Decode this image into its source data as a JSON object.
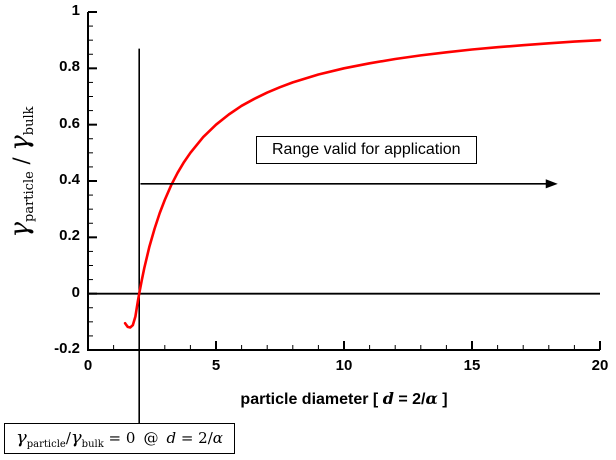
{
  "chart_data": {
    "type": "line",
    "xlabel": "particle diameter [ d = 2/α ]",
    "ylabel": "γparticle / γbulk",
    "xlim": [
      0,
      20
    ],
    "ylim": [
      -0.2,
      1
    ],
    "x_ticks": [
      0,
      5,
      10,
      15,
      20
    ],
    "x_tick_labels": [
      "0",
      "5",
      "10",
      "15",
      "20"
    ],
    "y_ticks": [
      -0.2,
      0,
      0.2,
      0.4,
      0.6,
      0.8,
      1
    ],
    "y_tick_labels": [
      "-0.2",
      "0",
      "0.2",
      "0.4",
      "0.6",
      "0.8",
      "1"
    ],
    "x_minor_step": 1,
    "y_minor_step": 0.05,
    "grid": false,
    "legend": "none",
    "series": [
      {
        "name": "gamma_ratio_vs_particle_diameter",
        "color": "#ff0000",
        "x": [
          1.45,
          1.55,
          1.65,
          1.75,
          1.85,
          1.95,
          2.0,
          2.1,
          2.2,
          2.4,
          2.6,
          2.8,
          3.0,
          3.25,
          3.5,
          3.75,
          4.0,
          4.5,
          5.0,
          5.5,
          6.0,
          6.5,
          7.0,
          7.5,
          8.0,
          9.0,
          10.0,
          11.0,
          12.0,
          13.0,
          14.0,
          15.0,
          16.0,
          17.0,
          18.0,
          19.0,
          20.0
        ],
        "y": [
          -0.105,
          -0.118,
          -0.12,
          -0.112,
          -0.081,
          -0.026,
          0.0,
          0.048,
          0.091,
          0.167,
          0.231,
          0.286,
          0.333,
          0.385,
          0.429,
          0.467,
          0.5,
          0.556,
          0.6,
          0.636,
          0.667,
          0.692,
          0.714,
          0.733,
          0.75,
          0.778,
          0.8,
          0.818,
          0.833,
          0.846,
          0.857,
          0.867,
          0.875,
          0.882,
          0.889,
          0.895,
          0.9
        ]
      }
    ],
    "reference_lines": {
      "horizontal_zero_line_y": 0,
      "vertical_line_x": 2,
      "vertical_line_y_top": 0.87
    },
    "annotations": {
      "arrow": {
        "y": 0.39,
        "x_start": 2.05,
        "x_end": 18.35,
        "label": "Range valid for application"
      },
      "footnote": "γparticle/γbulk = 0  @  d = 2/α"
    }
  },
  "labels": {
    "gamma": "γ",
    "sub_particle": "particle",
    "sub_bulk": "bulk",
    "ratio_sep": " / ",
    "xlabel_text": "particle diameter [ ",
    "xlabel_var": "d",
    "xlabel_eq": " = 2/",
    "alpha": "α",
    "xlabel_close": " ]",
    "fn_slash": "/",
    "fn_eq_zero": " = 0",
    "fn_at": "@"
  }
}
